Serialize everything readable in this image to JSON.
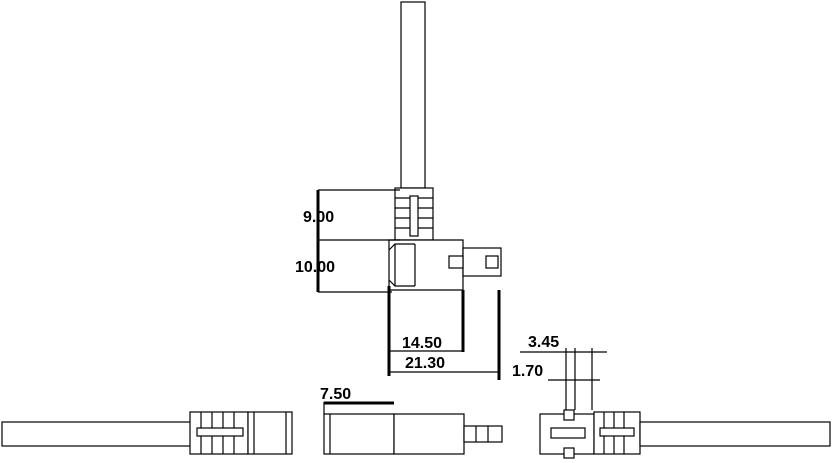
{
  "diagram": {
    "dimensions": {
      "boot_height": "9.00",
      "housing_height": "10.00",
      "housing_length": "14.50",
      "overall_length": "21.30",
      "plug_width": "3.45",
      "plug_offset": "1.70",
      "housing_thickness": "7.50"
    }
  }
}
